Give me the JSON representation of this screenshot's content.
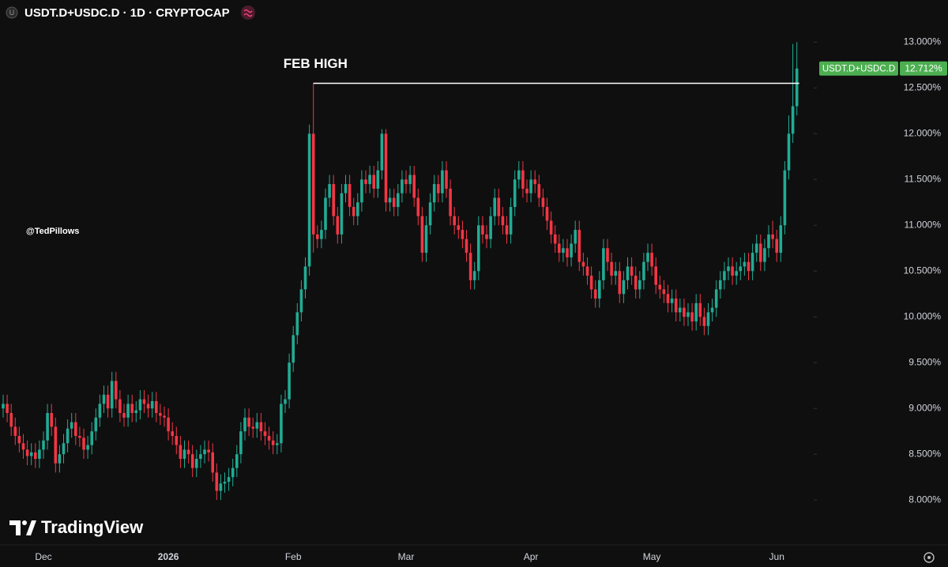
{
  "header": {
    "title": "USDT.D+USDC.D · 1D · CRYPTOCAP"
  },
  "watermark": "@TedPillows",
  "brand": "TradingView",
  "chart_data": {
    "type": "candlestick",
    "up_color": "#22ab94",
    "down_color": "#f23645",
    "categories": [
      null,
      null,
      null,
      null,
      null,
      null,
      null,
      null,
      null,
      null,
      "Dec",
      null,
      null,
      null,
      null,
      null,
      null,
      null,
      null,
      null,
      null,
      null,
      null,
      null,
      null,
      null,
      null,
      null,
      null,
      null,
      null,
      null,
      null,
      null,
      null,
      null,
      null,
      null,
      null,
      null,
      null,
      "2026",
      null,
      null,
      null,
      null,
      null,
      null,
      null,
      null,
      null,
      null,
      null,
      null,
      null,
      null,
      null,
      null,
      null,
      null,
      null,
      null,
      null,
      null,
      null,
      null,
      null,
      null,
      null,
      null,
      null,
      null,
      "Feb",
      null,
      null,
      null,
      null,
      null,
      null,
      null,
      null,
      null,
      null,
      null,
      null,
      null,
      null,
      null,
      null,
      null,
      null,
      null,
      null,
      null,
      null,
      null,
      null,
      null,
      null,
      null,
      "Mar",
      null,
      null,
      null,
      null,
      null,
      null,
      null,
      null,
      null,
      null,
      null,
      null,
      null,
      null,
      null,
      null,
      null,
      null,
      null,
      null,
      null,
      null,
      null,
      null,
      null,
      null,
      null,
      null,
      null,
      null,
      "Apr",
      null,
      null,
      null,
      null,
      null,
      null,
      null,
      null,
      null,
      null,
      null,
      null,
      null,
      null,
      null,
      null,
      null,
      null,
      null,
      null,
      null,
      null,
      null,
      null,
      null,
      null,
      null,
      null,
      null,
      "May",
      null,
      null,
      null,
      null,
      null,
      null,
      null,
      null,
      null,
      null,
      null,
      null,
      null,
      null,
      null,
      null,
      null,
      null,
      null,
      null,
      null,
      null,
      null,
      null,
      null,
      null,
      null,
      null,
      null,
      null,
      "Jun",
      null,
      null,
      null,
      null,
      null
    ],
    "open": [
      9.0,
      9.05,
      8.95,
      8.8,
      8.7,
      8.62,
      8.55,
      8.48,
      8.52,
      8.45,
      8.55,
      8.65,
      8.95,
      8.8,
      8.4,
      8.5,
      8.62,
      8.78,
      8.85,
      8.7,
      8.68,
      8.55,
      8.6,
      8.75,
      8.9,
      9.05,
      9.15,
      9.0,
      9.3,
      9.1,
      8.95,
      8.9,
      9.05,
      8.95,
      8.98,
      9.1,
      9.05,
      9.0,
      9.08,
      8.95,
      8.92,
      8.9,
      8.75,
      8.7,
      8.6,
      8.45,
      8.55,
      8.5,
      8.35,
      8.45,
      8.5,
      8.55,
      8.52,
      8.3,
      8.1,
      8.18,
      8.2,
      8.25,
      8.35,
      8.5,
      8.75,
      8.9,
      8.8,
      8.78,
      8.85,
      8.75,
      8.7,
      8.65,
      8.6,
      8.62,
      9.05,
      9.1,
      9.5,
      9.8,
      10.05,
      10.3,
      10.55,
      12.0,
      10.9,
      10.85,
      10.95,
      11.3,
      11.45,
      11.1,
      10.9,
      11.35,
      11.45,
      11.2,
      11.1,
      11.25,
      11.5,
      11.45,
      11.55,
      11.4,
      11.6,
      12.0,
      11.25,
      11.3,
      11.2,
      11.35,
      11.5,
      11.45,
      11.55,
      11.3,
      11.1,
      10.7,
      11.0,
      11.25,
      11.45,
      11.35,
      11.6,
      11.4,
      11.1,
      11.0,
      10.95,
      10.85,
      10.7,
      10.4,
      10.5,
      11.0,
      10.9,
      10.85,
      11.1,
      11.3,
      11.1,
      11.0,
      10.9,
      11.2,
      11.5,
      11.6,
      11.4,
      11.35,
      11.5,
      11.45,
      11.3,
      11.2,
      11.05,
      10.9,
      10.8,
      10.7,
      10.75,
      10.65,
      10.8,
      10.95,
      10.6,
      10.55,
      10.45,
      10.3,
      10.2,
      10.4,
      10.75,
      10.6,
      10.45,
      10.5,
      10.25,
      10.4,
      10.55,
      10.45,
      10.3,
      10.4,
      10.6,
      10.7,
      10.55,
      10.35,
      10.3,
      10.25,
      10.15,
      10.2,
      10.05,
      10.1,
      10.0,
      10.05,
      9.95,
      10.15,
      10.0,
      9.9,
      10.05,
      10.1,
      10.3,
      10.4,
      10.5,
      10.55,
      10.45,
      10.5,
      10.55,
      10.6,
      10.5,
      10.7,
      10.8,
      10.6,
      10.75,
      10.9,
      10.85,
      10.7,
      11.0,
      11.6,
      12.0,
      12.3
    ],
    "high": [
      9.15,
      9.15,
      9.05,
      8.9,
      8.8,
      8.72,
      8.65,
      8.62,
      8.62,
      8.65,
      8.75,
      9.05,
      9.05,
      8.9,
      8.6,
      8.72,
      8.88,
      8.95,
      8.95,
      8.8,
      8.78,
      8.7,
      8.85,
      9.0,
      9.15,
      9.25,
      9.25,
      9.4,
      9.4,
      9.2,
      9.05,
      9.15,
      9.15,
      9.08,
      9.2,
      9.2,
      9.15,
      9.18,
      9.18,
      9.05,
      9.02,
      9.0,
      8.85,
      8.8,
      8.7,
      8.65,
      8.65,
      8.6,
      8.55,
      8.6,
      8.65,
      8.65,
      8.62,
      8.4,
      8.28,
      8.3,
      8.35,
      8.45,
      8.6,
      8.85,
      9.0,
      9.0,
      8.9,
      8.95,
      8.95,
      8.85,
      8.8,
      8.75,
      8.72,
      9.15,
      9.2,
      9.6,
      9.9,
      10.15,
      10.4,
      10.65,
      12.1,
      12.55,
      11.0,
      11.05,
      11.4,
      11.55,
      11.55,
      11.2,
      11.45,
      11.55,
      11.55,
      11.3,
      11.35,
      11.6,
      11.6,
      11.65,
      11.65,
      11.7,
      12.05,
      12.05,
      11.4,
      11.4,
      11.45,
      11.6,
      11.6,
      11.65,
      11.65,
      11.4,
      11.2,
      11.1,
      11.35,
      11.55,
      11.55,
      11.7,
      11.7,
      11.5,
      11.2,
      11.1,
      11.05,
      10.95,
      10.8,
      10.6,
      11.1,
      11.1,
      11.0,
      11.2,
      11.4,
      11.4,
      11.2,
      11.1,
      11.3,
      11.6,
      11.7,
      11.7,
      11.5,
      11.6,
      11.6,
      11.55,
      11.4,
      11.3,
      11.15,
      11.0,
      10.9,
      10.85,
      10.85,
      10.9,
      11.05,
      11.05,
      10.7,
      10.65,
      10.55,
      10.4,
      10.5,
      10.85,
      10.85,
      10.7,
      10.6,
      10.6,
      10.5,
      10.65,
      10.65,
      10.55,
      10.5,
      10.7,
      10.8,
      10.8,
      10.65,
      10.45,
      10.4,
      10.35,
      10.3,
      10.3,
      10.2,
      10.2,
      10.15,
      10.15,
      10.25,
      10.25,
      10.1,
      10.15,
      10.2,
      10.4,
      10.5,
      10.6,
      10.65,
      10.65,
      10.6,
      10.65,
      10.7,
      10.7,
      10.8,
      10.9,
      10.9,
      10.85,
      11.0,
      11.05,
      10.95,
      11.1,
      11.7,
      12.2,
      12.98,
      13.0
    ],
    "low": [
      8.9,
      8.85,
      8.7,
      8.6,
      8.52,
      8.45,
      8.38,
      8.38,
      8.35,
      8.35,
      8.45,
      8.55,
      8.7,
      8.3,
      8.3,
      8.4,
      8.52,
      8.68,
      8.6,
      8.58,
      8.45,
      8.45,
      8.5,
      8.65,
      8.8,
      8.95,
      8.9,
      8.9,
      9.0,
      8.85,
      8.8,
      8.8,
      8.85,
      8.85,
      8.88,
      8.95,
      8.9,
      8.9,
      8.85,
      8.82,
      8.8,
      8.65,
      8.6,
      8.5,
      8.35,
      8.35,
      8.4,
      8.25,
      8.25,
      8.35,
      8.4,
      8.42,
      8.2,
      8.0,
      8.0,
      8.08,
      8.1,
      8.15,
      8.25,
      8.4,
      8.65,
      8.7,
      8.68,
      8.68,
      8.65,
      8.6,
      8.55,
      8.5,
      8.5,
      8.52,
      8.95,
      9.0,
      9.4,
      9.7,
      9.95,
      10.2,
      10.45,
      10.7,
      10.75,
      10.75,
      10.85,
      11.2,
      11.0,
      10.8,
      10.8,
      11.25,
      11.1,
      11.0,
      11.0,
      11.15,
      11.35,
      11.35,
      11.3,
      11.3,
      11.5,
      11.15,
      11.15,
      11.1,
      11.1,
      11.25,
      11.35,
      11.35,
      11.2,
      11.0,
      10.6,
      10.6,
      10.9,
      11.15,
      11.25,
      11.25,
      11.3,
      11.0,
      10.9,
      10.85,
      10.75,
      10.6,
      10.3,
      10.3,
      10.4,
      10.8,
      10.75,
      10.75,
      11.0,
      11.0,
      10.9,
      10.8,
      10.8,
      11.1,
      11.4,
      11.3,
      11.25,
      11.25,
      11.35,
      11.2,
      11.1,
      10.95,
      10.8,
      10.7,
      10.6,
      10.6,
      10.55,
      10.55,
      10.7,
      10.5,
      10.45,
      10.35,
      10.2,
      10.1,
      10.1,
      10.3,
      10.5,
      10.35,
      10.35,
      10.15,
      10.15,
      10.3,
      10.35,
      10.2,
      10.2,
      10.3,
      10.5,
      10.45,
      10.25,
      10.2,
      10.15,
      10.05,
      10.05,
      9.95,
      9.95,
      9.9,
      9.9,
      9.85,
      9.85,
      9.9,
      9.8,
      9.8,
      9.95,
      10.0,
      10.2,
      10.3,
      10.4,
      10.35,
      10.35,
      10.4,
      10.45,
      10.4,
      10.4,
      10.6,
      10.5,
      10.5,
      10.65,
      10.75,
      10.6,
      10.6,
      10.9,
      11.5,
      11.9,
      12.2
    ],
    "close": [
      9.05,
      8.95,
      8.8,
      8.7,
      8.62,
      8.55,
      8.48,
      8.52,
      8.45,
      8.55,
      8.65,
      8.95,
      8.8,
      8.4,
      8.5,
      8.62,
      8.78,
      8.85,
      8.7,
      8.68,
      8.55,
      8.6,
      8.75,
      8.9,
      9.05,
      9.15,
      9.0,
      9.3,
      9.1,
      8.95,
      8.9,
      9.05,
      8.95,
      8.98,
      9.1,
      9.05,
      9.0,
      9.08,
      8.95,
      8.92,
      8.9,
      8.75,
      8.7,
      8.6,
      8.45,
      8.55,
      8.5,
      8.35,
      8.45,
      8.5,
      8.55,
      8.52,
      8.3,
      8.1,
      8.18,
      8.2,
      8.25,
      8.35,
      8.5,
      8.75,
      8.9,
      8.8,
      8.78,
      8.85,
      8.75,
      8.7,
      8.65,
      8.6,
      8.62,
      9.05,
      9.1,
      9.5,
      9.8,
      10.05,
      10.3,
      10.55,
      12.0,
      10.9,
      10.85,
      10.95,
      11.3,
      11.45,
      11.1,
      10.9,
      11.35,
      11.45,
      11.2,
      11.1,
      11.25,
      11.5,
      11.45,
      11.55,
      11.4,
      11.6,
      12.0,
      11.25,
      11.3,
      11.2,
      11.35,
      11.5,
      11.45,
      11.55,
      11.3,
      11.1,
      10.7,
      11.0,
      11.25,
      11.45,
      11.35,
      11.6,
      11.4,
      11.1,
      11.0,
      10.95,
      10.85,
      10.7,
      10.4,
      10.5,
      11.0,
      10.9,
      10.85,
      11.1,
      11.3,
      11.1,
      11.0,
      10.9,
      11.2,
      11.5,
      11.6,
      11.4,
      11.35,
      11.5,
      11.45,
      11.3,
      11.2,
      11.05,
      10.9,
      10.8,
      10.7,
      10.75,
      10.65,
      10.8,
      10.95,
      10.6,
      10.55,
      10.45,
      10.3,
      10.2,
      10.4,
      10.75,
      10.6,
      10.45,
      10.5,
      10.25,
      10.4,
      10.55,
      10.45,
      10.3,
      10.4,
      10.6,
      10.7,
      10.55,
      10.35,
      10.3,
      10.25,
      10.15,
      10.2,
      10.05,
      10.1,
      10.0,
      10.05,
      9.95,
      10.15,
      10.0,
      9.9,
      10.05,
      10.1,
      10.3,
      10.4,
      10.5,
      10.55,
      10.45,
      10.5,
      10.55,
      10.6,
      10.5,
      10.7,
      10.8,
      10.6,
      10.75,
      10.9,
      10.85,
      10.7,
      11.0,
      11.6,
      12.0,
      12.3,
      12.712
    ],
    "price_tag": {
      "name": "USDT.D+USDC.D",
      "label": "12.712%",
      "color": "#4caf50"
    },
    "annotations": [
      {
        "text": "FEB HIGH",
        "value": 12.55,
        "color": "#ffffff"
      }
    ],
    "ylim": [
      7.51,
      13.46
    ],
    "yticks": [
      {
        "value": 8.0,
        "label": "8.000%"
      },
      {
        "value": 8.5,
        "label": "8.500%"
      },
      {
        "value": 9.0,
        "label": "9.000%"
      },
      {
        "value": 9.5,
        "label": "9.500%"
      },
      {
        "value": 10.0,
        "label": "10.000%"
      },
      {
        "value": 10.5,
        "label": "10.500%"
      },
      {
        "value": 11.0,
        "label": "11.000%"
      },
      {
        "value": 11.5,
        "label": "11.500%"
      },
      {
        "value": 12.0,
        "label": "12.000%"
      },
      {
        "value": 12.5,
        "label": "12.500%"
      },
      {
        "value": 13.0,
        "label": "13.000%"
      }
    ],
    "grid": false
  }
}
